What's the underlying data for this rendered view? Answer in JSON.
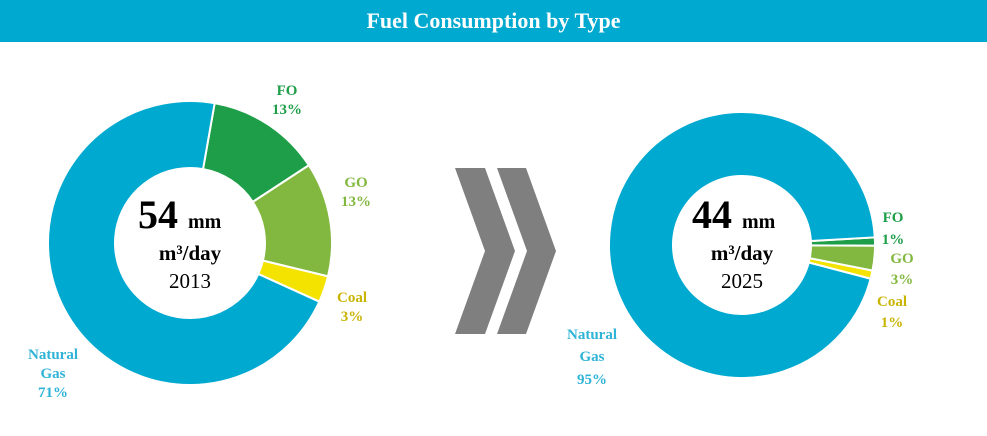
{
  "title": "Fuel Consumption by Type",
  "colors": {
    "banner": "#00a9cf",
    "natural_gas": "#00a9cf",
    "fo": "#1e9e48",
    "go": "#82b840",
    "coal": "#f4e200",
    "arrow": "#7f7f7f",
    "natural_gas_text": "#2fb3d6",
    "fo_text": "#1e9e48",
    "go_text": "#82b840",
    "coal_text": "#c9b400"
  },
  "chart_data": [
    {
      "type": "pie",
      "center_value": "54",
      "center_unit": "mm",
      "center_unit2": "m³/day",
      "center_year": "2013",
      "slices": [
        {
          "name": "FO",
          "value": 13,
          "label": "13%"
        },
        {
          "name": "GO",
          "value": 13,
          "label": "13%"
        },
        {
          "name": "Coal",
          "value": 3,
          "label": "3%"
        },
        {
          "name": "Natural Gas",
          "value": 71,
          "label": "71%"
        }
      ]
    },
    {
      "type": "pie",
      "center_value": "44",
      "center_unit": "mm",
      "center_unit2": "m³/day",
      "center_year": "2025",
      "slices": [
        {
          "name": "FO",
          "value": 1,
          "label": "1%"
        },
        {
          "name": "GO",
          "value": 3,
          "label": "3%"
        },
        {
          "name": "Coal",
          "value": 1,
          "label": "1%"
        },
        {
          "name": "Natural Gas",
          "value": 95,
          "label": "95%"
        }
      ]
    }
  ]
}
